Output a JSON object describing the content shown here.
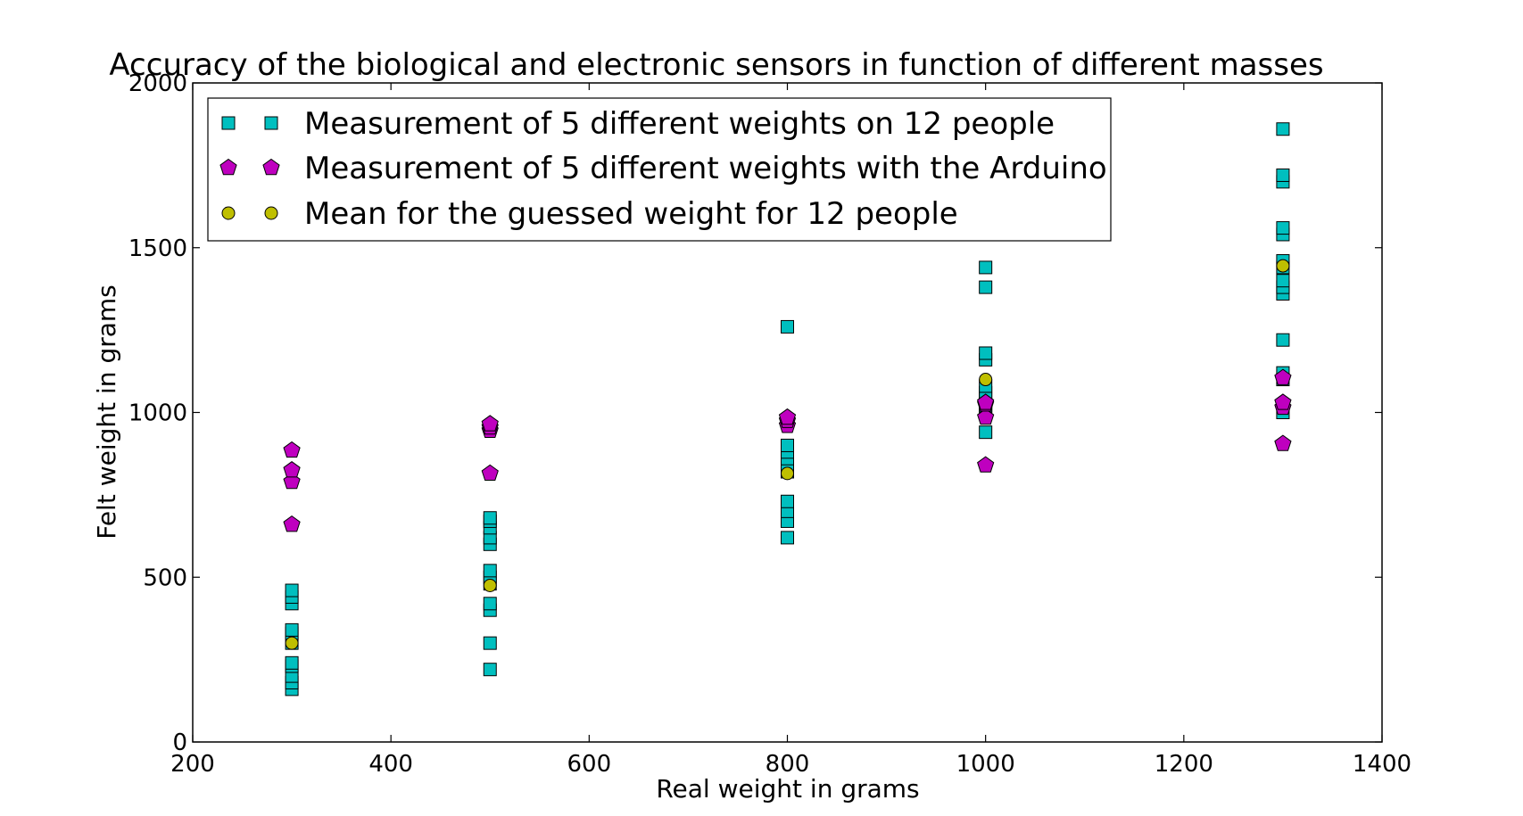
{
  "chart_data": {
    "type": "scatter",
    "title": "Accuracy of the biological and electronic sensors in function of different masses",
    "xlabel": "Real weight in grams",
    "ylabel": "Felt weight in grams",
    "xlim": [
      200,
      1400
    ],
    "ylim": [
      0,
      2000
    ],
    "xticks": [
      "200",
      "400",
      "600",
      "800",
      "1000",
      "1200",
      "1400"
    ],
    "yticks": [
      "0",
      "500",
      "1000",
      "1500",
      "2000"
    ],
    "grid": false,
    "legend_position": "top-left",
    "series": [
      {
        "name": "Measurement of 5 different weights on 12 people",
        "marker": "square",
        "color": "#00bfbf",
        "points": [
          [
            300,
            160
          ],
          [
            300,
            180
          ],
          [
            300,
            200
          ],
          [
            300,
            230
          ],
          [
            300,
            240
          ],
          [
            300,
            300
          ],
          [
            300,
            330
          ],
          [
            300,
            340
          ],
          [
            300,
            420
          ],
          [
            300,
            440
          ],
          [
            300,
            460
          ],
          [
            500,
            220
          ],
          [
            500,
            300
          ],
          [
            500,
            400
          ],
          [
            500,
            420
          ],
          [
            500,
            480
          ],
          [
            500,
            500
          ],
          [
            500,
            520
          ],
          [
            500,
            600
          ],
          [
            500,
            620
          ],
          [
            500,
            650
          ],
          [
            500,
            670
          ],
          [
            500,
            680
          ],
          [
            800,
            620
          ],
          [
            800,
            670
          ],
          [
            800,
            700
          ],
          [
            800,
            730
          ],
          [
            800,
            820
          ],
          [
            800,
            840
          ],
          [
            800,
            860
          ],
          [
            800,
            880
          ],
          [
            800,
            900
          ],
          [
            800,
            1260
          ],
          [
            1000,
            940
          ],
          [
            1000,
            1000
          ],
          [
            1000,
            1020
          ],
          [
            1000,
            1040
          ],
          [
            1000,
            1060
          ],
          [
            1000,
            1080
          ],
          [
            1000,
            1160
          ],
          [
            1000,
            1180
          ],
          [
            1000,
            1380
          ],
          [
            1000,
            1440
          ],
          [
            1300,
            1000
          ],
          [
            1300,
            1100
          ],
          [
            1300,
            1120
          ],
          [
            1300,
            1220
          ],
          [
            1300,
            1360
          ],
          [
            1300,
            1380
          ],
          [
            1300,
            1400
          ],
          [
            1300,
            1440
          ],
          [
            1300,
            1460
          ],
          [
            1300,
            1540
          ],
          [
            1300,
            1560
          ],
          [
            1300,
            1700
          ],
          [
            1300,
            1720
          ],
          [
            1300,
            1860
          ]
        ]
      },
      {
        "name": "Measurement of 5 different weights with the Arduino",
        "marker": "pentagon",
        "color": "#bf00bf",
        "points": [
          [
            300,
            660
          ],
          [
            300,
            790
          ],
          [
            300,
            825
          ],
          [
            300,
            885
          ],
          [
            500,
            815
          ],
          [
            500,
            945
          ],
          [
            500,
            955
          ],
          [
            500,
            965
          ],
          [
            800,
            960
          ],
          [
            800,
            975
          ],
          [
            800,
            985
          ],
          [
            1000,
            840
          ],
          [
            1000,
            985
          ],
          [
            1000,
            1025
          ],
          [
            1000,
            1030
          ],
          [
            1300,
            905
          ],
          [
            1300,
            1015
          ],
          [
            1300,
            1030
          ],
          [
            1300,
            1105
          ]
        ]
      },
      {
        "name": "Mean for the guessed weight for 12 people",
        "marker": "circle",
        "color": "#bfbf00",
        "points": [
          [
            300,
            300
          ],
          [
            500,
            475
          ],
          [
            800,
            815
          ],
          [
            1000,
            1100
          ],
          [
            1300,
            1445
          ]
        ]
      }
    ]
  }
}
